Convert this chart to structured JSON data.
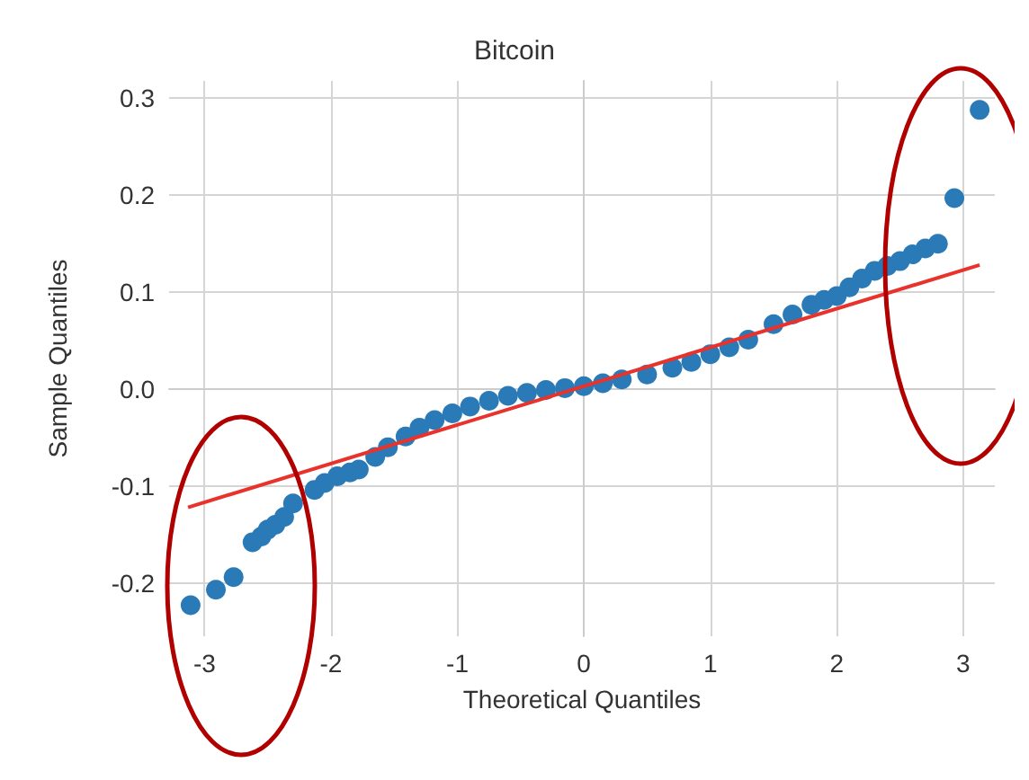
{
  "chart_data": {
    "type": "scatter",
    "title": "Bitcoin",
    "xlabel": "Theoretical Quantiles",
    "ylabel": "Sample Quantiles",
    "xlim": [
      -3.28,
      3.25
    ],
    "ylim": [
      -0.255,
      0.318
    ],
    "xticks": [
      -3,
      -2,
      -1,
      0,
      1,
      2,
      3
    ],
    "yticks": [
      -0.2,
      -0.1,
      {
        "value": 0,
        "label": "0.0"
      },
      0.1,
      0.2,
      0.3
    ],
    "grid": true,
    "marker": "circle",
    "series": [
      {
        "color": "#2a7ab8",
        "x": [
          -3.11,
          -2.91,
          -2.77,
          -2.62,
          -2.55,
          -2.5,
          -2.44,
          -2.37,
          -2.3,
          -2.13,
          -2.05,
          -1.95,
          -1.85,
          -1.78,
          -1.65,
          -1.55,
          -1.41,
          -1.3,
          -1.18,
          -1.04,
          -0.9,
          -0.75,
          -0.6,
          -0.45,
          -0.3,
          -0.15,
          0.0,
          0.15,
          0.3,
          0.5,
          0.7,
          0.85,
          1.0,
          1.15,
          1.3,
          1.5,
          1.65,
          1.8,
          1.9,
          2.0,
          2.1,
          2.2,
          2.3,
          2.4,
          2.5,
          2.6,
          2.7,
          2.8,
          2.93,
          3.13
        ],
        "values": [
          -0.223,
          -0.207,
          -0.194,
          -0.158,
          -0.152,
          -0.145,
          -0.14,
          -0.132,
          -0.118,
          -0.104,
          -0.097,
          -0.09,
          -0.086,
          -0.083,
          -0.07,
          -0.06,
          -0.049,
          -0.04,
          -0.032,
          -0.025,
          -0.018,
          -0.012,
          -0.007,
          -0.004,
          -0.001,
          0.001,
          0.003,
          0.006,
          0.01,
          0.015,
          0.022,
          0.028,
          0.036,
          0.043,
          0.051,
          0.067,
          0.077,
          0.087,
          0.092,
          0.096,
          0.105,
          0.114,
          0.122,
          0.127,
          0.132,
          0.139,
          0.145,
          0.15,
          0.197,
          0.288
        ]
      },
      {
        "type": "line",
        "color": "#e8322b",
        "x": [
          -3.13,
          3.13
        ],
        "values": [
          -0.122,
          0.128
        ],
        "marker": "none",
        "line_style": "solid"
      }
    ]
  }
}
